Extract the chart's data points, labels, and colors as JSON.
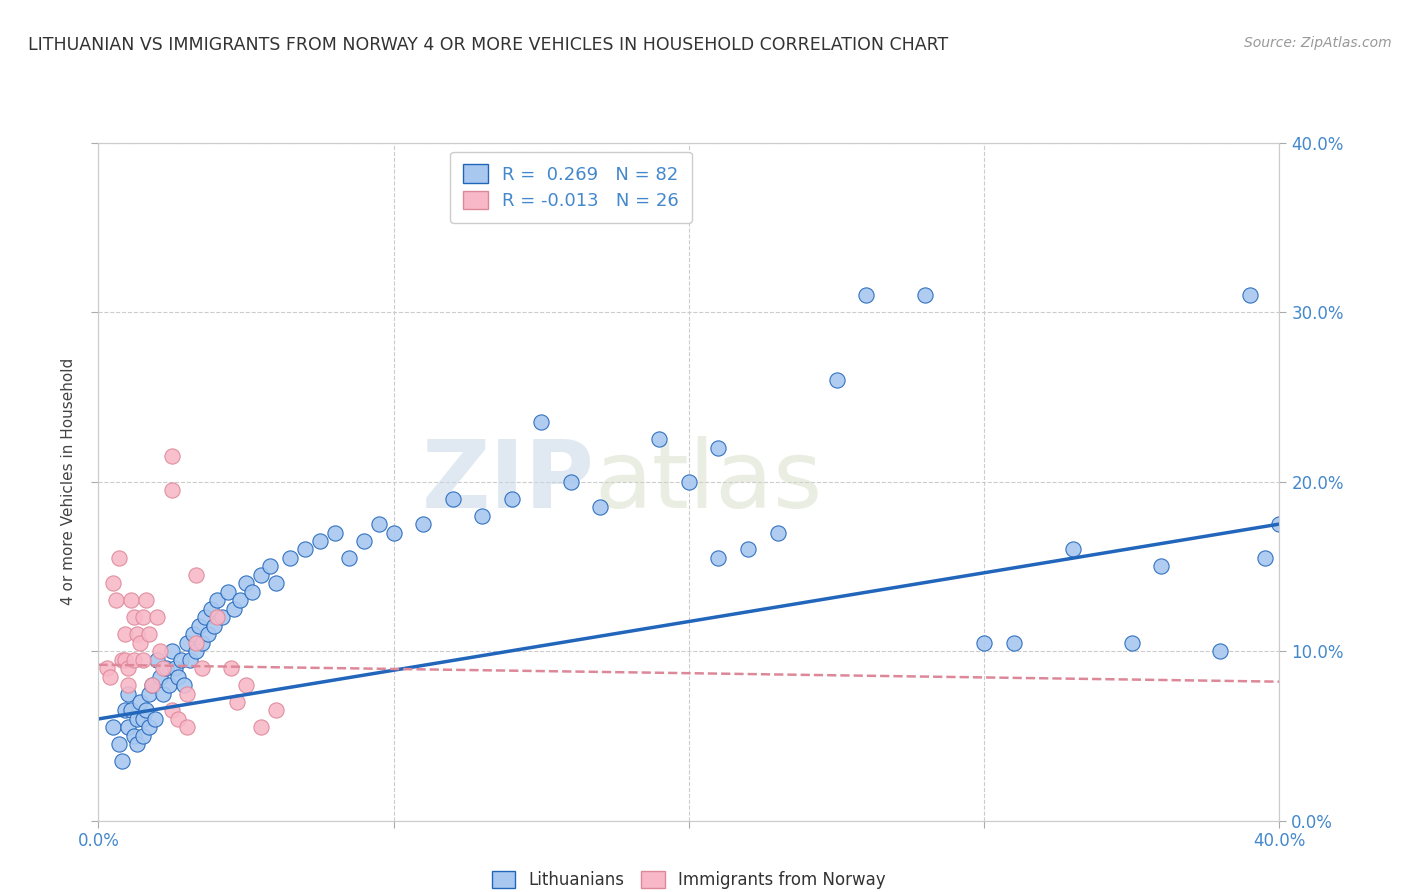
{
  "title": "LITHUANIAN VS IMMIGRANTS FROM NORWAY 4 OR MORE VEHICLES IN HOUSEHOLD CORRELATION CHART",
  "source": "Source: ZipAtlas.com",
  "ylabel": "4 or more Vehicles in Household",
  "watermark_zip": "ZIP",
  "watermark_atlas": "atlas",
  "blue_color": "#a8c8f0",
  "pink_color": "#f8b8c8",
  "line_blue": "#2266bb",
  "line_pink": "#dd8899",
  "axis_color": "#4488cc",
  "blue_scatter": [
    [
      0.005,
      0.055
    ],
    [
      0.007,
      0.045
    ],
    [
      0.008,
      0.035
    ],
    [
      0.009,
      0.065
    ],
    [
      0.01,
      0.075
    ],
    [
      0.01,
      0.055
    ],
    [
      0.011,
      0.065
    ],
    [
      0.012,
      0.05
    ],
    [
      0.013,
      0.06
    ],
    [
      0.013,
      0.045
    ],
    [
      0.014,
      0.07
    ],
    [
      0.015,
      0.06
    ],
    [
      0.015,
      0.05
    ],
    [
      0.016,
      0.065
    ],
    [
      0.017,
      0.075
    ],
    [
      0.017,
      0.055
    ],
    [
      0.018,
      0.08
    ],
    [
      0.019,
      0.06
    ],
    [
      0.02,
      0.095
    ],
    [
      0.021,
      0.085
    ],
    [
      0.022,
      0.075
    ],
    [
      0.023,
      0.09
    ],
    [
      0.024,
      0.08
    ],
    [
      0.025,
      0.1
    ],
    [
      0.026,
      0.09
    ],
    [
      0.027,
      0.085
    ],
    [
      0.028,
      0.095
    ],
    [
      0.029,
      0.08
    ],
    [
      0.03,
      0.105
    ],
    [
      0.031,
      0.095
    ],
    [
      0.032,
      0.11
    ],
    [
      0.033,
      0.1
    ],
    [
      0.034,
      0.115
    ],
    [
      0.035,
      0.105
    ],
    [
      0.036,
      0.12
    ],
    [
      0.037,
      0.11
    ],
    [
      0.038,
      0.125
    ],
    [
      0.039,
      0.115
    ],
    [
      0.04,
      0.13
    ],
    [
      0.042,
      0.12
    ],
    [
      0.044,
      0.135
    ],
    [
      0.046,
      0.125
    ],
    [
      0.048,
      0.13
    ],
    [
      0.05,
      0.14
    ],
    [
      0.052,
      0.135
    ],
    [
      0.055,
      0.145
    ],
    [
      0.058,
      0.15
    ],
    [
      0.06,
      0.14
    ],
    [
      0.065,
      0.155
    ],
    [
      0.07,
      0.16
    ],
    [
      0.075,
      0.165
    ],
    [
      0.08,
      0.17
    ],
    [
      0.085,
      0.155
    ],
    [
      0.09,
      0.165
    ],
    [
      0.095,
      0.175
    ],
    [
      0.1,
      0.17
    ],
    [
      0.11,
      0.175
    ],
    [
      0.12,
      0.19
    ],
    [
      0.13,
      0.18
    ],
    [
      0.14,
      0.19
    ],
    [
      0.15,
      0.235
    ],
    [
      0.16,
      0.2
    ],
    [
      0.17,
      0.185
    ],
    [
      0.19,
      0.225
    ],
    [
      0.2,
      0.2
    ],
    [
      0.21,
      0.22
    ],
    [
      0.21,
      0.155
    ],
    [
      0.22,
      0.16
    ],
    [
      0.23,
      0.17
    ],
    [
      0.25,
      0.26
    ],
    [
      0.26,
      0.31
    ],
    [
      0.28,
      0.31
    ],
    [
      0.3,
      0.105
    ],
    [
      0.31,
      0.105
    ],
    [
      0.33,
      0.16
    ],
    [
      0.35,
      0.105
    ],
    [
      0.36,
      0.15
    ],
    [
      0.38,
      0.1
    ],
    [
      0.39,
      0.31
    ],
    [
      0.395,
      0.155
    ],
    [
      0.4,
      0.175
    ]
  ],
  "pink_scatter": [
    [
      0.003,
      0.09
    ],
    [
      0.004,
      0.085
    ],
    [
      0.005,
      0.14
    ],
    [
      0.006,
      0.13
    ],
    [
      0.007,
      0.155
    ],
    [
      0.008,
      0.095
    ],
    [
      0.009,
      0.11
    ],
    [
      0.009,
      0.095
    ],
    [
      0.01,
      0.09
    ],
    [
      0.01,
      0.08
    ],
    [
      0.011,
      0.13
    ],
    [
      0.012,
      0.12
    ],
    [
      0.012,
      0.095
    ],
    [
      0.013,
      0.11
    ],
    [
      0.014,
      0.105
    ],
    [
      0.015,
      0.12
    ],
    [
      0.015,
      0.095
    ],
    [
      0.016,
      0.13
    ],
    [
      0.017,
      0.11
    ],
    [
      0.018,
      0.08
    ],
    [
      0.02,
      0.12
    ],
    [
      0.021,
      0.1
    ],
    [
      0.022,
      0.09
    ],
    [
      0.025,
      0.215
    ],
    [
      0.025,
      0.195
    ],
    [
      0.025,
      0.065
    ],
    [
      0.027,
      0.06
    ],
    [
      0.03,
      0.055
    ],
    [
      0.03,
      0.075
    ],
    [
      0.033,
      0.145
    ],
    [
      0.033,
      0.105
    ],
    [
      0.035,
      0.09
    ],
    [
      0.04,
      0.12
    ],
    [
      0.045,
      0.09
    ],
    [
      0.047,
      0.07
    ],
    [
      0.05,
      0.08
    ],
    [
      0.055,
      0.055
    ],
    [
      0.06,
      0.065
    ]
  ],
  "xmin": 0.0,
  "xmax": 0.4,
  "ymin": 0.0,
  "ymax": 0.4,
  "blue_trend_x": [
    0.0,
    0.4
  ],
  "blue_trend_y": [
    0.06,
    0.175
  ],
  "pink_trend_x": [
    0.0,
    0.4
  ],
  "pink_trend_y": [
    0.092,
    0.082
  ]
}
